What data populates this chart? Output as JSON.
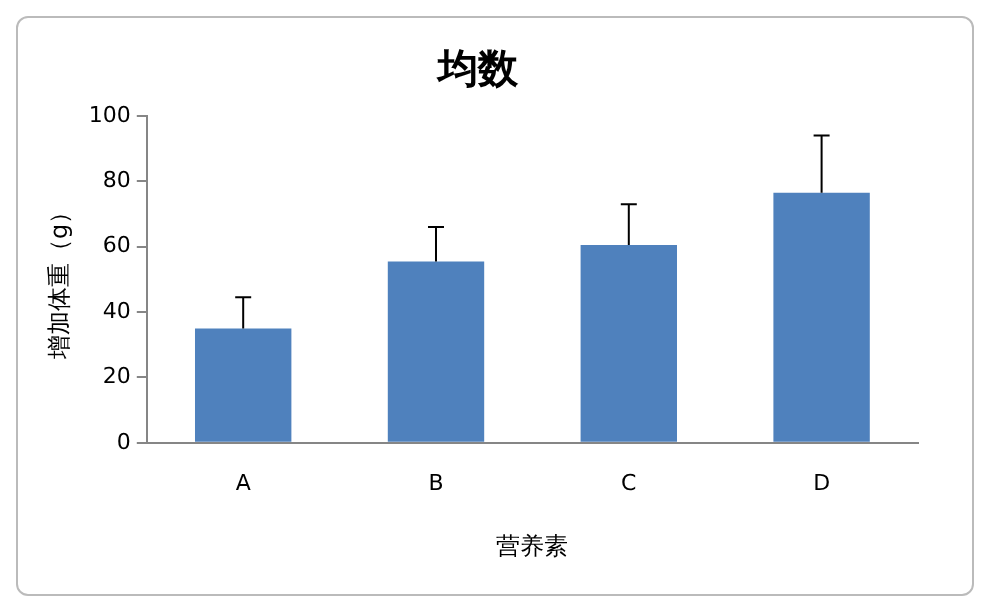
{
  "chart_data": {
    "type": "bar",
    "title": "均数",
    "xlabel": "营养素",
    "ylabel": "增加体重（g）",
    "categories": [
      "A",
      "B",
      "C",
      "D"
    ],
    "values": [
      35,
      55.5,
      60.5,
      76.5
    ],
    "errors": [
      [
        35,
        44.5
      ],
      [
        55.5,
        66
      ],
      [
        60.5,
        73
      ],
      [
        76.5,
        94
      ]
    ],
    "color": "#4f81bd",
    "ylim": [
      0,
      100
    ],
    "yticks": [
      0,
      20,
      40,
      60,
      80,
      100
    ],
    "grid": false,
    "legend": false
  }
}
